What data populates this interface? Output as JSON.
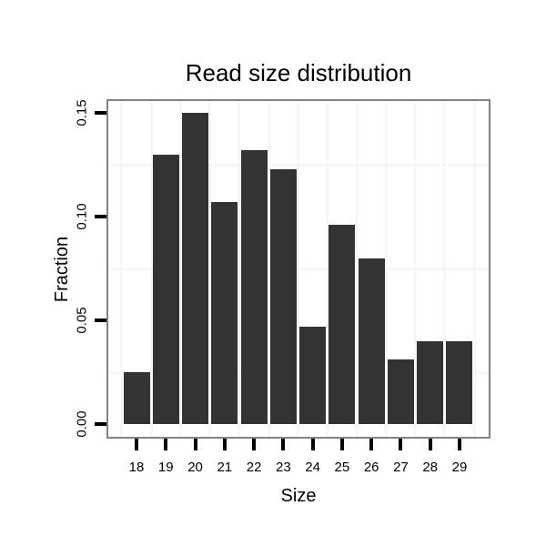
{
  "chart_data": {
    "type": "bar",
    "title": "Read size distribution",
    "xlabel": "Size",
    "ylabel": "Fraction",
    "categories": [
      "18",
      "19",
      "20",
      "21",
      "22",
      "23",
      "24",
      "25",
      "26",
      "27",
      "28",
      "29"
    ],
    "values": [
      0.025,
      0.13,
      0.15,
      0.107,
      0.132,
      0.123,
      0.047,
      0.096,
      0.08,
      0.031,
      0.04,
      0.04
    ],
    "y_ticks": [
      0.0,
      0.05,
      0.1,
      0.15
    ],
    "y_tick_labels": [
      "0.00",
      "0.05",
      "0.10",
      "0.15"
    ],
    "ylim": [
      -0.007,
      0.157
    ],
    "minor_grid_values": [
      0.025,
      0.075,
      0.125
    ],
    "grid": "minor gridlines only, very faint; majors not visible",
    "legend": "none",
    "colors": {
      "bar": "#333333",
      "panel_border": "#828282",
      "tick": "#000000",
      "text": "#000000",
      "minor_grid": "#f7f7f7",
      "background": "#ffffff"
    }
  }
}
